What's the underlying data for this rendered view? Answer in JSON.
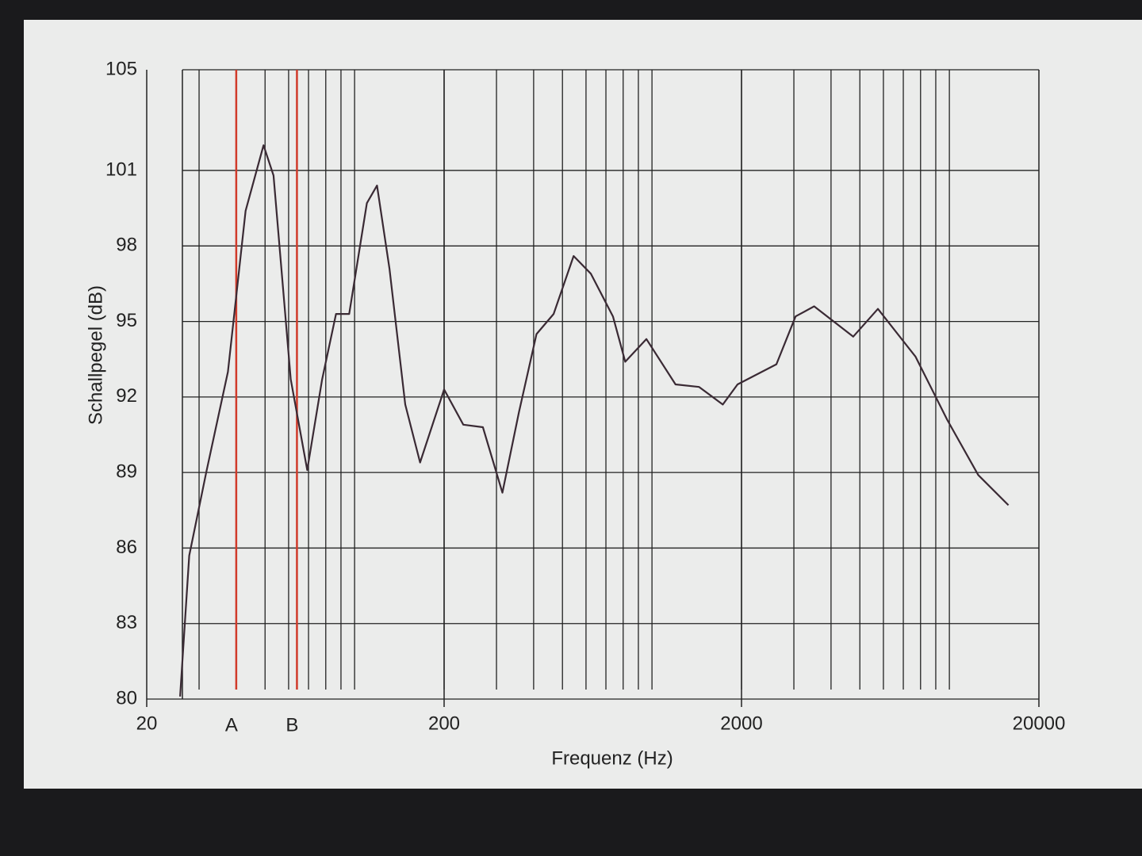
{
  "chart_data": {
    "type": "line",
    "xlabel": "Frequenz (Hz)",
    "ylabel": "Schallpegel (dB)",
    "xscale": "log",
    "xlim": [
      20,
      20000
    ],
    "xticks": [
      20,
      200,
      2000,
      20000
    ],
    "ylim": [
      80,
      105
    ],
    "yticks": [
      80,
      83,
      86,
      89,
      92,
      95,
      98,
      101,
      105
    ],
    "grid": true,
    "minor_grid": true,
    "markers": [
      {
        "label": "A",
        "x": 40,
        "color": "#d03a2a"
      },
      {
        "label": "B",
        "x": 64,
        "color": "#d03a2a"
      }
    ],
    "series": [
      {
        "color": "#3a2a34",
        "x": [
          25.9,
          27.8,
          31.7,
          37.5,
          43,
          49.4,
          53.4,
          61,
          69.3,
          77.8,
          86.6,
          95.9,
          110,
          119,
          131,
          148,
          166,
          200,
          232,
          270,
          314,
          357,
          409,
          467,
          545,
          623,
          739,
          813,
          958,
          1200,
          1440,
          1730,
          1940,
          2620,
          3040,
          3510,
          4750,
          5750,
          7700,
          9830,
          12500,
          15800
        ],
        "values": [
          80.1,
          85.7,
          89.0,
          93.0,
          99.4,
          102.0,
          100.8,
          92.7,
          89.1,
          92.7,
          95.3,
          95.3,
          99.7,
          100.4,
          97.1,
          91.7,
          89.4,
          92.3,
          90.9,
          90.8,
          88.2,
          91.4,
          94.5,
          95.3,
          97.6,
          96.9,
          95.2,
          93.4,
          94.3,
          92.5,
          92.4,
          91.7,
          92.5,
          93.3,
          95.2,
          95.6,
          94.4,
          95.5,
          93.6,
          91.1,
          88.9,
          87.7
        ]
      }
    ]
  }
}
